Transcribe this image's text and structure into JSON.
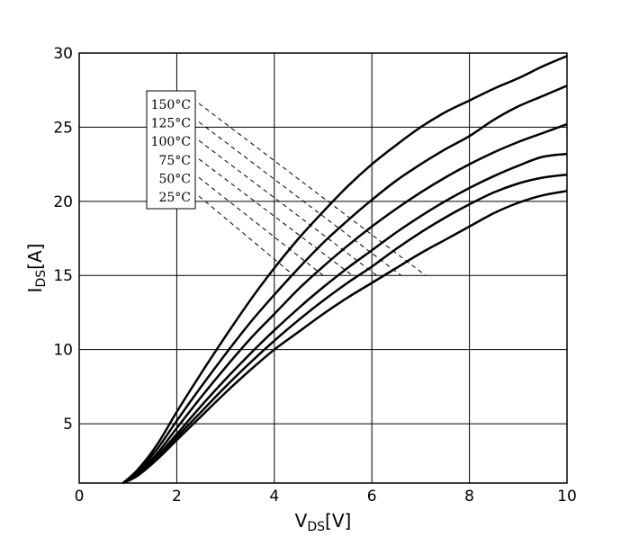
{
  "chart_data": {
    "type": "line",
    "title": "",
    "xlabel_main": "V",
    "xlabel_sub": "DS",
    "xlabel_unit": "[V]",
    "ylabel_main": "I",
    "ylabel_sub": "DS",
    "ylabel_unit": "[A]",
    "xlim": [
      0,
      10
    ],
    "ylim": [
      1,
      30
    ],
    "xticks": [
      0,
      2,
      4,
      6,
      8,
      10
    ],
    "yticks": [
      5,
      10,
      15,
      20,
      25,
      30
    ],
    "grid": true,
    "series": [
      {
        "name": "150°C",
        "points": [
          [
            0.9,
            1.0
          ],
          [
            1.2,
            1.9
          ],
          [
            1.6,
            3.6
          ],
          [
            2.0,
            5.8
          ],
          [
            2.5,
            8.4
          ],
          [
            3.0,
            10.9
          ],
          [
            3.5,
            13.3
          ],
          [
            4.0,
            15.5
          ],
          [
            4.5,
            17.5
          ],
          [
            5.0,
            19.3
          ],
          [
            5.5,
            21.0
          ],
          [
            6.0,
            22.5
          ],
          [
            6.5,
            23.8
          ],
          [
            7.0,
            25.0
          ],
          [
            7.5,
            26.0
          ],
          [
            8.0,
            26.8
          ],
          [
            8.5,
            27.6
          ],
          [
            9.0,
            28.3
          ],
          [
            9.5,
            29.1
          ],
          [
            10.0,
            29.8
          ]
        ]
      },
      {
        "name": "125°C",
        "points": [
          [
            0.9,
            1.0
          ],
          [
            1.2,
            1.8
          ],
          [
            1.6,
            3.3
          ],
          [
            2.0,
            5.2
          ],
          [
            2.5,
            7.5
          ],
          [
            3.0,
            9.7
          ],
          [
            3.5,
            11.8
          ],
          [
            4.0,
            13.7
          ],
          [
            4.5,
            15.5
          ],
          [
            5.0,
            17.2
          ],
          [
            5.5,
            18.7
          ],
          [
            6.0,
            20.1
          ],
          [
            6.5,
            21.4
          ],
          [
            7.0,
            22.5
          ],
          [
            7.5,
            23.5
          ],
          [
            8.0,
            24.4
          ],
          [
            8.5,
            25.5
          ],
          [
            9.0,
            26.4
          ],
          [
            9.5,
            27.1
          ],
          [
            10.0,
            27.8
          ]
        ]
      },
      {
        "name": "100°C",
        "points": [
          [
            0.9,
            1.0
          ],
          [
            1.2,
            1.7
          ],
          [
            1.6,
            3.0
          ],
          [
            2.0,
            4.7
          ],
          [
            2.5,
            6.8
          ],
          [
            3.0,
            8.8
          ],
          [
            3.5,
            10.7
          ],
          [
            4.0,
            12.4
          ],
          [
            4.5,
            14.1
          ],
          [
            5.0,
            15.6
          ],
          [
            5.5,
            17.0
          ],
          [
            6.0,
            18.3
          ],
          [
            6.5,
            19.5
          ],
          [
            7.0,
            20.6
          ],
          [
            7.5,
            21.6
          ],
          [
            8.0,
            22.5
          ],
          [
            8.5,
            23.3
          ],
          [
            9.0,
            24.0
          ],
          [
            9.5,
            24.6
          ],
          [
            10.0,
            25.2
          ]
        ]
      },
      {
        "name": "75°C",
        "points": [
          [
            0.9,
            1.0
          ],
          [
            1.2,
            1.6
          ],
          [
            1.6,
            2.8
          ],
          [
            2.0,
            4.3
          ],
          [
            2.5,
            6.2
          ],
          [
            3.0,
            8.0
          ],
          [
            3.5,
            9.7
          ],
          [
            4.0,
            11.3
          ],
          [
            4.5,
            12.8
          ],
          [
            5.0,
            14.2
          ],
          [
            5.5,
            15.5
          ],
          [
            6.0,
            16.7
          ],
          [
            6.5,
            17.9
          ],
          [
            7.0,
            19.0
          ],
          [
            7.5,
            20.0
          ],
          [
            8.0,
            20.9
          ],
          [
            8.5,
            21.7
          ],
          [
            9.0,
            22.4
          ],
          [
            9.5,
            23.0
          ],
          [
            10.0,
            23.2
          ]
        ]
      },
      {
        "name": "50°C",
        "points": [
          [
            0.9,
            1.0
          ],
          [
            1.2,
            1.6
          ],
          [
            1.6,
            2.7
          ],
          [
            2.0,
            4.1
          ],
          [
            2.5,
            5.8
          ],
          [
            3.0,
            7.5
          ],
          [
            3.5,
            9.1
          ],
          [
            4.0,
            10.6
          ],
          [
            4.5,
            12.0
          ],
          [
            5.0,
            13.3
          ],
          [
            5.5,
            14.5
          ],
          [
            6.0,
            15.6
          ],
          [
            6.5,
            16.8
          ],
          [
            7.0,
            17.9
          ],
          [
            7.5,
            18.9
          ],
          [
            8.0,
            19.8
          ],
          [
            8.5,
            20.6
          ],
          [
            9.0,
            21.2
          ],
          [
            9.5,
            21.6
          ],
          [
            10.0,
            21.8
          ]
        ]
      },
      {
        "name": "25°C",
        "points": [
          [
            0.9,
            1.0
          ],
          [
            1.2,
            1.5
          ],
          [
            1.6,
            2.6
          ],
          [
            2.0,
            3.9
          ],
          [
            2.5,
            5.5
          ],
          [
            3.0,
            7.1
          ],
          [
            3.5,
            8.6
          ],
          [
            4.0,
            10.0
          ],
          [
            4.5,
            11.2
          ],
          [
            5.0,
            12.4
          ],
          [
            5.5,
            13.5
          ],
          [
            6.0,
            14.5
          ],
          [
            6.5,
            15.5
          ],
          [
            7.0,
            16.5
          ],
          [
            7.5,
            17.4
          ],
          [
            8.0,
            18.3
          ],
          [
            8.5,
            19.2
          ],
          [
            9.0,
            19.9
          ],
          [
            9.5,
            20.4
          ],
          [
            10.0,
            20.7
          ]
        ]
      }
    ],
    "legend": {
      "placement": "top-left",
      "entries": [
        "150°C",
        "125°C",
        "100°C",
        "75°C",
        "50°C",
        "25°C"
      ],
      "leader_ends": [
        [
          7.1,
          15.0
        ],
        [
          6.6,
          15.0
        ],
        [
          6.1,
          15.0
        ],
        [
          5.6,
          15.0
        ],
        [
          5.0,
          15.0
        ],
        [
          4.4,
          15.0
        ]
      ]
    }
  }
}
